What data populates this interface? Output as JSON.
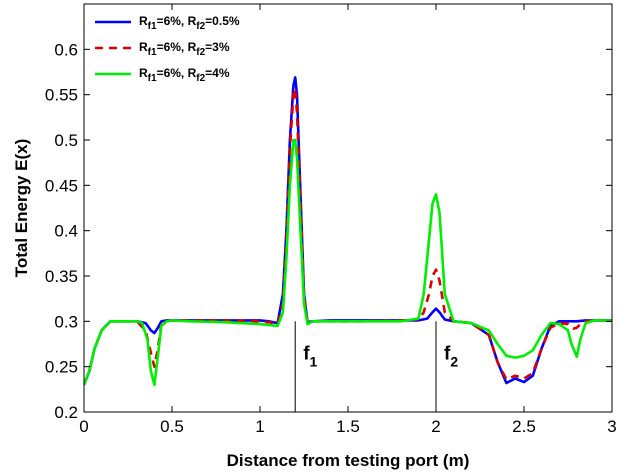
{
  "chart_data": {
    "type": "line",
    "title": "",
    "xlabel": "Distance from testing port (m)",
    "ylabel": "Total Energy E(x)",
    "xlim": [
      0,
      3
    ],
    "ylim": [
      0.2,
      0.65
    ],
    "xticks": [
      0,
      0.5,
      1,
      1.5,
      2,
      2.5,
      3
    ],
    "xtick_labels": [
      "0",
      "0.5",
      "1",
      "1.5",
      "2",
      "2.5",
      "3"
    ],
    "yticks": [
      0.2,
      0.25,
      0.3,
      0.35,
      0.4,
      0.45,
      0.5,
      0.55,
      0.6
    ],
    "ytick_labels": [
      "0.2",
      "0.25",
      "0.3",
      "0.35",
      "0.4",
      "0.45",
      "0.5",
      "0.55",
      "0.6"
    ],
    "grid": false,
    "legend_position": "top-left",
    "annotations": [
      {
        "label": "f",
        "subscript": "1",
        "x": 1.2
      },
      {
        "label": "f",
        "subscript": "2",
        "x": 2.0
      }
    ],
    "series": [
      {
        "name_parts": [
          "R",
          "f1",
          "=6%, R",
          "f2",
          "=0.5%"
        ],
        "color": "#0000ff",
        "dash": "solid",
        "x": [
          0,
          0.03,
          0.06,
          0.1,
          0.15,
          0.2,
          0.25,
          0.3,
          0.35,
          0.38,
          0.4,
          0.42,
          0.44,
          0.47,
          0.5,
          0.6,
          0.8,
          1.0,
          1.05,
          1.1,
          1.13,
          1.15,
          1.17,
          1.19,
          1.2,
          1.21,
          1.23,
          1.25,
          1.27,
          1.3,
          1.4,
          1.6,
          1.8,
          1.9,
          1.95,
          1.98,
          2.0,
          2.02,
          2.05,
          2.1,
          2.2,
          2.3,
          2.35,
          2.4,
          2.45,
          2.5,
          2.55,
          2.6,
          2.65,
          2.7,
          2.75,
          2.8,
          2.85,
          2.9,
          3.0
        ],
        "y": [
          0.23,
          0.245,
          0.27,
          0.29,
          0.3,
          0.3,
          0.3,
          0.3,
          0.298,
          0.29,
          0.287,
          0.293,
          0.3,
          0.301,
          0.301,
          0.301,
          0.301,
          0.301,
          0.3,
          0.298,
          0.33,
          0.4,
          0.5,
          0.56,
          0.569,
          0.55,
          0.44,
          0.33,
          0.299,
          0.3,
          0.301,
          0.301,
          0.301,
          0.301,
          0.303,
          0.31,
          0.314,
          0.31,
          0.302,
          0.3,
          0.298,
          0.285,
          0.255,
          0.232,
          0.237,
          0.233,
          0.24,
          0.27,
          0.295,
          0.3,
          0.3,
          0.3,
          0.301,
          0.301,
          0.301
        ]
      },
      {
        "name_parts": [
          "R",
          "f1",
          "=6%, R",
          "f2",
          "=3%"
        ],
        "color": "#dd0000",
        "dash": "dashed",
        "x": [
          0,
          0.03,
          0.06,
          0.1,
          0.15,
          0.2,
          0.25,
          0.3,
          0.35,
          0.38,
          0.4,
          0.42,
          0.44,
          0.47,
          0.5,
          0.6,
          0.8,
          1.0,
          1.05,
          1.1,
          1.13,
          1.15,
          1.17,
          1.19,
          1.2,
          1.21,
          1.23,
          1.25,
          1.27,
          1.3,
          1.4,
          1.6,
          1.8,
          1.9,
          1.93,
          1.96,
          1.98,
          2.0,
          2.02,
          2.05,
          2.1,
          2.2,
          2.3,
          2.35,
          2.4,
          2.45,
          2.5,
          2.55,
          2.6,
          2.65,
          2.7,
          2.75,
          2.78,
          2.8,
          2.82,
          2.85,
          2.9,
          3.0
        ],
        "y": [
          0.23,
          0.245,
          0.27,
          0.29,
          0.3,
          0.3,
          0.3,
          0.3,
          0.29,
          0.265,
          0.25,
          0.27,
          0.297,
          0.3,
          0.301,
          0.301,
          0.301,
          0.3,
          0.299,
          0.297,
          0.32,
          0.39,
          0.49,
          0.55,
          0.557,
          0.53,
          0.43,
          0.33,
          0.298,
          0.3,
          0.3,
          0.3,
          0.301,
          0.302,
          0.31,
          0.33,
          0.35,
          0.357,
          0.345,
          0.31,
          0.3,
          0.298,
          0.285,
          0.255,
          0.236,
          0.24,
          0.237,
          0.243,
          0.27,
          0.293,
          0.298,
          0.297,
          0.292,
          0.293,
          0.297,
          0.3,
          0.301,
          0.301
        ]
      },
      {
        "name_parts": [
          "R",
          "f1",
          "=6%, R",
          "f2",
          "=4%"
        ],
        "color": "#00ee00",
        "dash": "solid",
        "x": [
          0,
          0.03,
          0.06,
          0.1,
          0.15,
          0.2,
          0.25,
          0.3,
          0.33,
          0.36,
          0.38,
          0.4,
          0.42,
          0.44,
          0.47,
          0.5,
          0.6,
          0.8,
          1.0,
          1.05,
          1.1,
          1.13,
          1.15,
          1.17,
          1.19,
          1.2,
          1.21,
          1.23,
          1.25,
          1.27,
          1.3,
          1.4,
          1.6,
          1.8,
          1.9,
          1.93,
          1.96,
          1.98,
          2.0,
          2.02,
          2.05,
          2.1,
          2.2,
          2.3,
          2.35,
          2.4,
          2.45,
          2.5,
          2.55,
          2.6,
          2.65,
          2.7,
          2.75,
          2.77,
          2.8,
          2.82,
          2.85,
          2.9,
          3.0
        ],
        "y": [
          0.23,
          0.245,
          0.27,
          0.29,
          0.3,
          0.3,
          0.3,
          0.3,
          0.298,
          0.28,
          0.245,
          0.23,
          0.262,
          0.295,
          0.3,
          0.301,
          0.3,
          0.299,
          0.297,
          0.296,
          0.295,
          0.31,
          0.37,
          0.45,
          0.5,
          0.5,
          0.48,
          0.4,
          0.32,
          0.297,
          0.3,
          0.3,
          0.3,
          0.3,
          0.303,
          0.33,
          0.39,
          0.43,
          0.44,
          0.42,
          0.33,
          0.3,
          0.298,
          0.29,
          0.275,
          0.262,
          0.26,
          0.262,
          0.268,
          0.285,
          0.298,
          0.297,
          0.29,
          0.275,
          0.261,
          0.28,
          0.298,
          0.301,
          0.301
        ]
      }
    ]
  }
}
